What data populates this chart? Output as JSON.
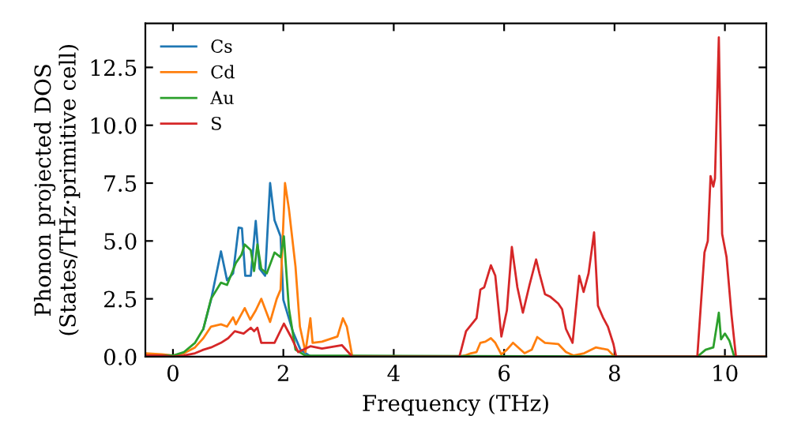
{
  "chart_data": {
    "type": "line",
    "xlabel": "Frequency (THz)",
    "ylabel": "Phonon projected DOS\n(States/THz·primitive cell)",
    "xlim": [
      -0.5,
      10.75
    ],
    "ylim": [
      0,
      14.4
    ],
    "xticks": [
      0,
      2,
      4,
      6,
      8,
      10
    ],
    "yticks": [
      {
        "value": 0,
        "label": "0.0"
      },
      {
        "value": 2.5,
        "label": "2.5"
      },
      {
        "value": 5,
        "label": "5.0"
      },
      {
        "value": 7.5,
        "label": "7.5"
      },
      {
        "value": 10,
        "label": "10.0"
      },
      {
        "value": 12.5,
        "label": "12.5"
      }
    ],
    "legend": "top left",
    "grid": false,
    "line_style": "solid",
    "marker": "none",
    "series": [
      {
        "name": "Cs",
        "color": "#1f77b4",
        "x": [
          0.55,
          0.69,
          0.87,
          0.98,
          1.09,
          1.19,
          1.25,
          1.31,
          1.41,
          1.5,
          1.57,
          1.67,
          1.76,
          1.84,
          1.95,
          2.0,
          2.17,
          2.31,
          2.5,
          10.75
        ],
        "values": [
          1.2,
          2.46,
          4.55,
          3.3,
          3.6,
          5.58,
          5.55,
          3.5,
          3.5,
          5.87,
          3.8,
          3.5,
          7.5,
          5.9,
          5.2,
          2.46,
          1.1,
          0.3,
          0,
          0
        ]
      },
      {
        "name": "Cd",
        "color": "#ff7f0e",
        "x": [
          -0.5,
          -0.2,
          0,
          0.2,
          0.4,
          0.55,
          0.69,
          0.87,
          0.98,
          1.09,
          1.14,
          1.3,
          1.4,
          1.5,
          1.6,
          1.76,
          1.88,
          1.95,
          2.03,
          2.1,
          2.22,
          2.3,
          2.4,
          2.49,
          2.53,
          2.7,
          2.98,
          3.08,
          3.15,
          3.25,
          5.19,
          5.29,
          5.4,
          5.5,
          5.57,
          5.66,
          5.76,
          5.84,
          5.95,
          6.05,
          6.16,
          6.37,
          6.5,
          6.6,
          6.74,
          6.98,
          7.12,
          7.26,
          7.45,
          7.66,
          7.88,
          8.0,
          10.75
        ],
        "values": [
          0.15,
          0.1,
          0.05,
          0.15,
          0.4,
          0.8,
          1.3,
          1.4,
          1.3,
          1.7,
          1.4,
          2.1,
          1.6,
          2.0,
          2.5,
          1.5,
          2.5,
          2.9,
          7.5,
          6.4,
          3.9,
          1.3,
          0.2,
          1.66,
          0.6,
          0.65,
          0.87,
          1.66,
          1.3,
          0,
          0,
          0.05,
          0.15,
          0.2,
          0.6,
          0.65,
          0.8,
          0.6,
          0.1,
          0.3,
          0.6,
          0.15,
          0.3,
          0.85,
          0.6,
          0.55,
          0.2,
          0.05,
          0.15,
          0.4,
          0.3,
          0,
          0
        ]
      },
      {
        "name": "Au",
        "color": "#2ca02c",
        "x": [
          -0.5,
          -0.2,
          0,
          0.2,
          0.4,
          0.55,
          0.69,
          0.87,
          0.98,
          1.14,
          1.24,
          1.3,
          1.41,
          1.47,
          1.53,
          1.6,
          1.7,
          1.84,
          1.95,
          2.01,
          2.1,
          2.22,
          2.4,
          9.5,
          9.55,
          9.65,
          9.79,
          9.89,
          9.93,
          10.0,
          10.08,
          10.17,
          10.75
        ],
        "values": [
          0.05,
          0.05,
          0.05,
          0.2,
          0.6,
          1.2,
          2.5,
          3.2,
          3.1,
          4.05,
          4.4,
          4.85,
          4.6,
          3.7,
          4.85,
          3.8,
          3.6,
          4.5,
          4.3,
          5.2,
          2.1,
          0.3,
          0.05,
          0,
          0.1,
          0.3,
          0.4,
          1.9,
          0.75,
          1.0,
          0.7,
          0,
          0
        ]
      },
      {
        "name": "S",
        "color": "#d62728",
        "x": [
          -0.5,
          -0.2,
          0,
          0.2,
          0.4,
          0.55,
          0.69,
          0.87,
          1.0,
          1.12,
          1.28,
          1.41,
          1.47,
          1.53,
          1.6,
          1.84,
          2.01,
          2.14,
          2.27,
          2.49,
          2.7,
          3.06,
          3.25,
          5.19,
          5.31,
          5.5,
          5.57,
          5.64,
          5.76,
          5.84,
          5.95,
          6.05,
          6.14,
          6.24,
          6.34,
          6.46,
          6.58,
          6.64,
          6.74,
          6.83,
          6.98,
          7.05,
          7.12,
          7.24,
          7.36,
          7.44,
          7.53,
          7.63,
          7.7,
          7.79,
          7.88,
          7.98,
          8.03,
          9.5,
          9.63,
          9.69,
          9.74,
          9.79,
          9.82,
          9.89,
          9.95,
          10.03,
          10.12,
          10.2,
          10.75
        ],
        "values": [
          0.05,
          0.05,
          0,
          0.05,
          0.15,
          0.3,
          0.4,
          0.6,
          0.8,
          1.1,
          1.0,
          1.25,
          1.1,
          1.25,
          0.6,
          0.6,
          1.43,
          0.85,
          0.2,
          0.45,
          0.35,
          0.5,
          0,
          0,
          1.1,
          1.66,
          2.9,
          3.0,
          3.95,
          3.5,
          0.87,
          2.0,
          4.74,
          3.0,
          1.9,
          3.1,
          4.2,
          3.6,
          2.7,
          2.6,
          2.3,
          2.05,
          1.2,
          0.6,
          3.5,
          2.8,
          3.6,
          5.37,
          2.2,
          1.7,
          1.3,
          0.55,
          0,
          0,
          4.5,
          5.0,
          7.8,
          7.35,
          7.7,
          13.8,
          5.3,
          4.3,
          1.8,
          0,
          0
        ]
      }
    ]
  }
}
